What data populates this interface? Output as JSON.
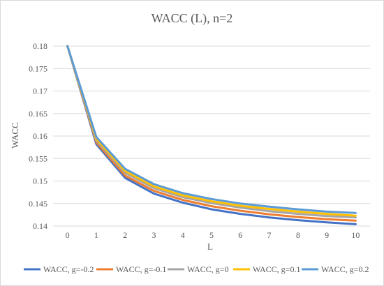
{
  "chart_data": {
    "type": "line",
    "title": "WACC (L), n=2",
    "xlabel": "L",
    "ylabel": "WACC",
    "x": [
      0,
      1,
      2,
      3,
      4,
      5,
      6,
      7,
      8,
      9,
      10
    ],
    "x_tick_labels": [
      "0",
      "1",
      "2",
      "3",
      "4",
      "5",
      "6",
      "7",
      "8",
      "9",
      "10"
    ],
    "ylim": [
      0.14,
      0.18
    ],
    "y_ticks": [
      0.14,
      0.145,
      0.15,
      0.155,
      0.16,
      0.165,
      0.17,
      0.175,
      0.18
    ],
    "y_tick_labels": [
      "0.14",
      "0.145",
      "0.15",
      "0.155",
      "0.16",
      "0.165",
      "0.17",
      "0.175",
      "0.18"
    ],
    "grid": true,
    "legend_position": "bottom",
    "series": [
      {
        "name": "WACC, g=-0.2",
        "color": "#4472C4",
        "values": [
          0.18,
          0.1582,
          0.1507,
          0.1472,
          0.1452,
          0.1437,
          0.1427,
          0.1419,
          0.1413,
          0.1408,
          0.1404
        ]
      },
      {
        "name": "WACC, g=-0.1",
        "color": "#ED7D31",
        "values": [
          0.18,
          0.1586,
          0.1512,
          0.1478,
          0.1458,
          0.1444,
          0.1434,
          0.1426,
          0.142,
          0.1415,
          0.1412
        ]
      },
      {
        "name": "WACC, g=0",
        "color": "#A5A5A5",
        "values": [
          0.18,
          0.159,
          0.1518,
          0.1484,
          0.1464,
          0.1451,
          0.1441,
          0.1433,
          0.1427,
          0.1422,
          0.1419
        ]
      },
      {
        "name": "WACC, g=0.1",
        "color": "#FFC000",
        "values": [
          0.18,
          0.1594,
          0.1522,
          0.1488,
          0.1468,
          0.1455,
          0.1445,
          0.1438,
          0.1432,
          0.1427,
          0.1423
        ]
      },
      {
        "name": "WACC, g=0.2",
        "color": "#5B9BD5",
        "values": [
          0.18,
          0.1598,
          0.1527,
          0.1493,
          0.1473,
          0.146,
          0.145,
          0.1443,
          0.1437,
          0.1432,
          0.1429
        ]
      }
    ]
  }
}
